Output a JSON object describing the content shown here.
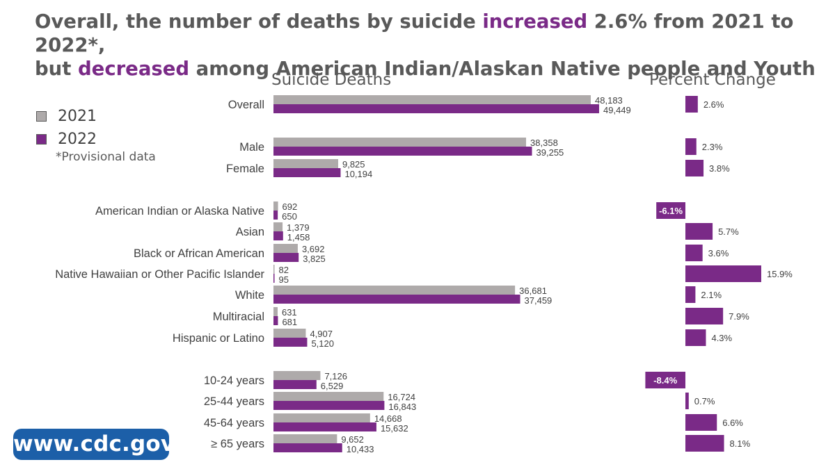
{
  "title": {
    "line1_a": "Overall, the number of deaths by suicide ",
    "line1_hl": "increased",
    "line1_b": " 2.6% from 2021 to 2022*,",
    "line2_a": "but ",
    "line2_hl": "decreased",
    "line2_b": " among American Indian/Alaskan Native people and Youth"
  },
  "legend": {
    "items": [
      {
        "label": "2021",
        "color": "#aeaaaa"
      },
      {
        "label": "2022",
        "color": "#7a2a87"
      }
    ],
    "footnote": "*Provisional data"
  },
  "badge": "www.cdc.gov",
  "colors": {
    "y2021": "#aeaaaa",
    "y2022": "#7a2a87",
    "text": "#404040"
  },
  "chart_data": [
    {
      "type": "bar",
      "orientation": "horizontal",
      "title": "Suicide Deaths",
      "xlim": [
        0,
        50000
      ],
      "categories": [
        "Overall",
        "Male",
        "Female",
        "American Indian or Alaska Native",
        "Asian",
        "Black or African American",
        "Native Hawaiian or Other Pacific Islander",
        "White",
        "Multiracial",
        "Hispanic or Latino",
        "10-24 years",
        "25-44 years",
        "45-64 years",
        "≥ 65 years"
      ],
      "series": [
        {
          "name": "2021",
          "values": [
            48183,
            38358,
            9825,
            692,
            1379,
            3692,
            82,
            36681,
            631,
            4907,
            7126,
            16724,
            14668,
            9652
          ],
          "labels": [
            "48,183",
            "38,358",
            "9,825",
            "692",
            "1,379",
            "3,692",
            "82",
            "36,681",
            "631",
            "4,907",
            "7,126",
            "16,724",
            "14,668",
            "9,652"
          ]
        },
        {
          "name": "2022",
          "values": [
            49449,
            39255,
            10194,
            650,
            1458,
            3825,
            95,
            37459,
            681,
            5120,
            6529,
            16843,
            15632,
            10433
          ],
          "labels": [
            "49,449",
            "39,255",
            "10,194",
            "650",
            "1,458",
            "3,825",
            "95",
            "37,459",
            "681",
            "5,120",
            "6,529",
            "16,843",
            "15,632",
            "10,433"
          ]
        }
      ]
    },
    {
      "type": "bar",
      "orientation": "horizontal",
      "title": "Percent Change",
      "categories": [
        "Overall",
        "Male",
        "Female",
        "American Indian or Alaska Native",
        "Asian",
        "Black or African American",
        "Native Hawaiian or Other Pacific Islander",
        "White",
        "Multiracial",
        "Hispanic or Latino",
        "10-24 years",
        "25-44 years",
        "45-64 years",
        "≥ 65 years"
      ],
      "values": [
        2.6,
        2.3,
        3.8,
        -6.1,
        5.7,
        3.6,
        15.9,
        2.1,
        7.9,
        4.3,
        -8.4,
        0.7,
        6.6,
        8.1
      ],
      "labels": [
        "2.6%",
        "2.3%",
        "3.8%",
        "-6.1%",
        "5.7%",
        "3.6%",
        "15.9%",
        "2.1%",
        "7.9%",
        "4.3%",
        "-8.4%",
        "0.7%",
        "6.6%",
        "8.1%"
      ]
    }
  ]
}
